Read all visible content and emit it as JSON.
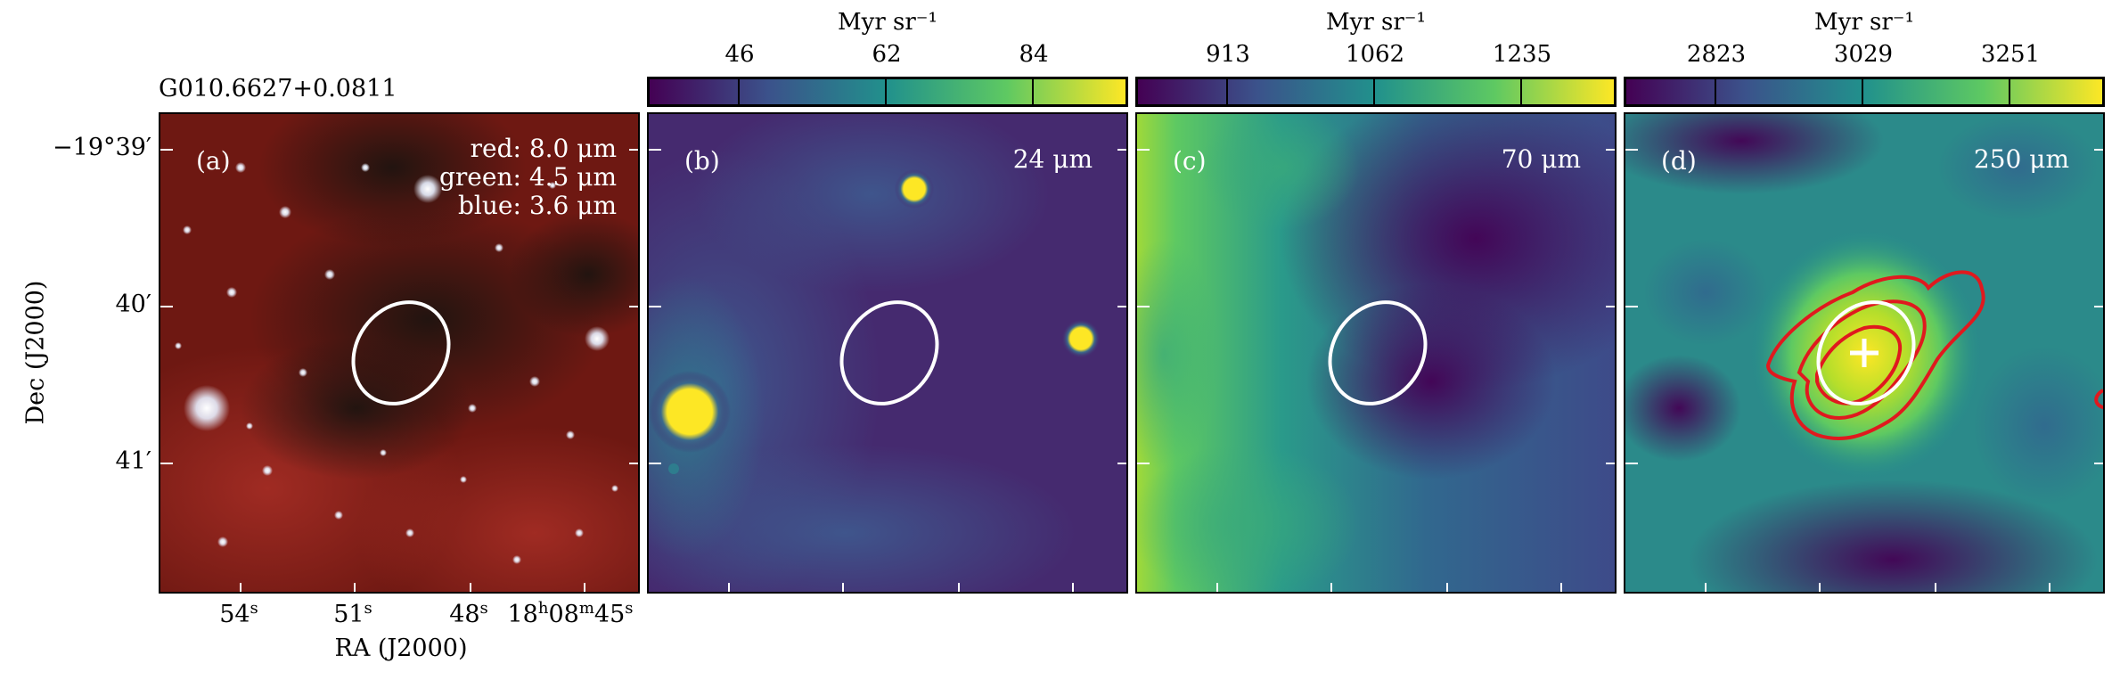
{
  "figure": {
    "source_name": "G010.6627+0.0811",
    "ylabel": "Dec (J2000)",
    "xlabel": "RA (J2000)",
    "dec_ticks": [
      "−19°39′",
      "40′",
      "41′"
    ],
    "ra_ticks": [
      {
        "main": "54",
        "sup": "s"
      },
      {
        "main": "51",
        "sup": "s"
      },
      {
        "main": "48",
        "sup": "s"
      },
      {
        "main": "18",
        "sup": "h",
        "main2": "08",
        "sup2": "m",
        "main3": "45",
        "sup3": "s"
      }
    ]
  },
  "panels": [
    {
      "id": "a",
      "label": "(a)",
      "bands": [
        "red: 8.0 μm",
        "green: 4.5 μm",
        "blue: 3.6 μm"
      ],
      "colormap": "rgb composite"
    },
    {
      "id": "b",
      "label": "(b)",
      "band": "24 μm",
      "colorbar": {
        "unit": "Myr sr⁻¹",
        "ticks": [
          "46",
          "62",
          "84"
        ]
      },
      "colormap": "viridis"
    },
    {
      "id": "c",
      "label": "(c)",
      "band": "70 μm",
      "colorbar": {
        "unit": "Myr sr⁻¹",
        "ticks": [
          "913",
          "1062",
          "1235"
        ]
      },
      "colormap": "viridis"
    },
    {
      "id": "d",
      "label": "(d)",
      "band": "250 μm",
      "colorbar": {
        "unit": "Myr sr⁻¹",
        "ticks": [
          "2823",
          "3029",
          "3251"
        ]
      },
      "colormap": "viridis",
      "overlays": [
        "red contours",
        "white cross"
      ]
    }
  ],
  "colors": {
    "ellipse": "#ffffff",
    "contour": "#e0191e",
    "cross": "#ffffff"
  }
}
